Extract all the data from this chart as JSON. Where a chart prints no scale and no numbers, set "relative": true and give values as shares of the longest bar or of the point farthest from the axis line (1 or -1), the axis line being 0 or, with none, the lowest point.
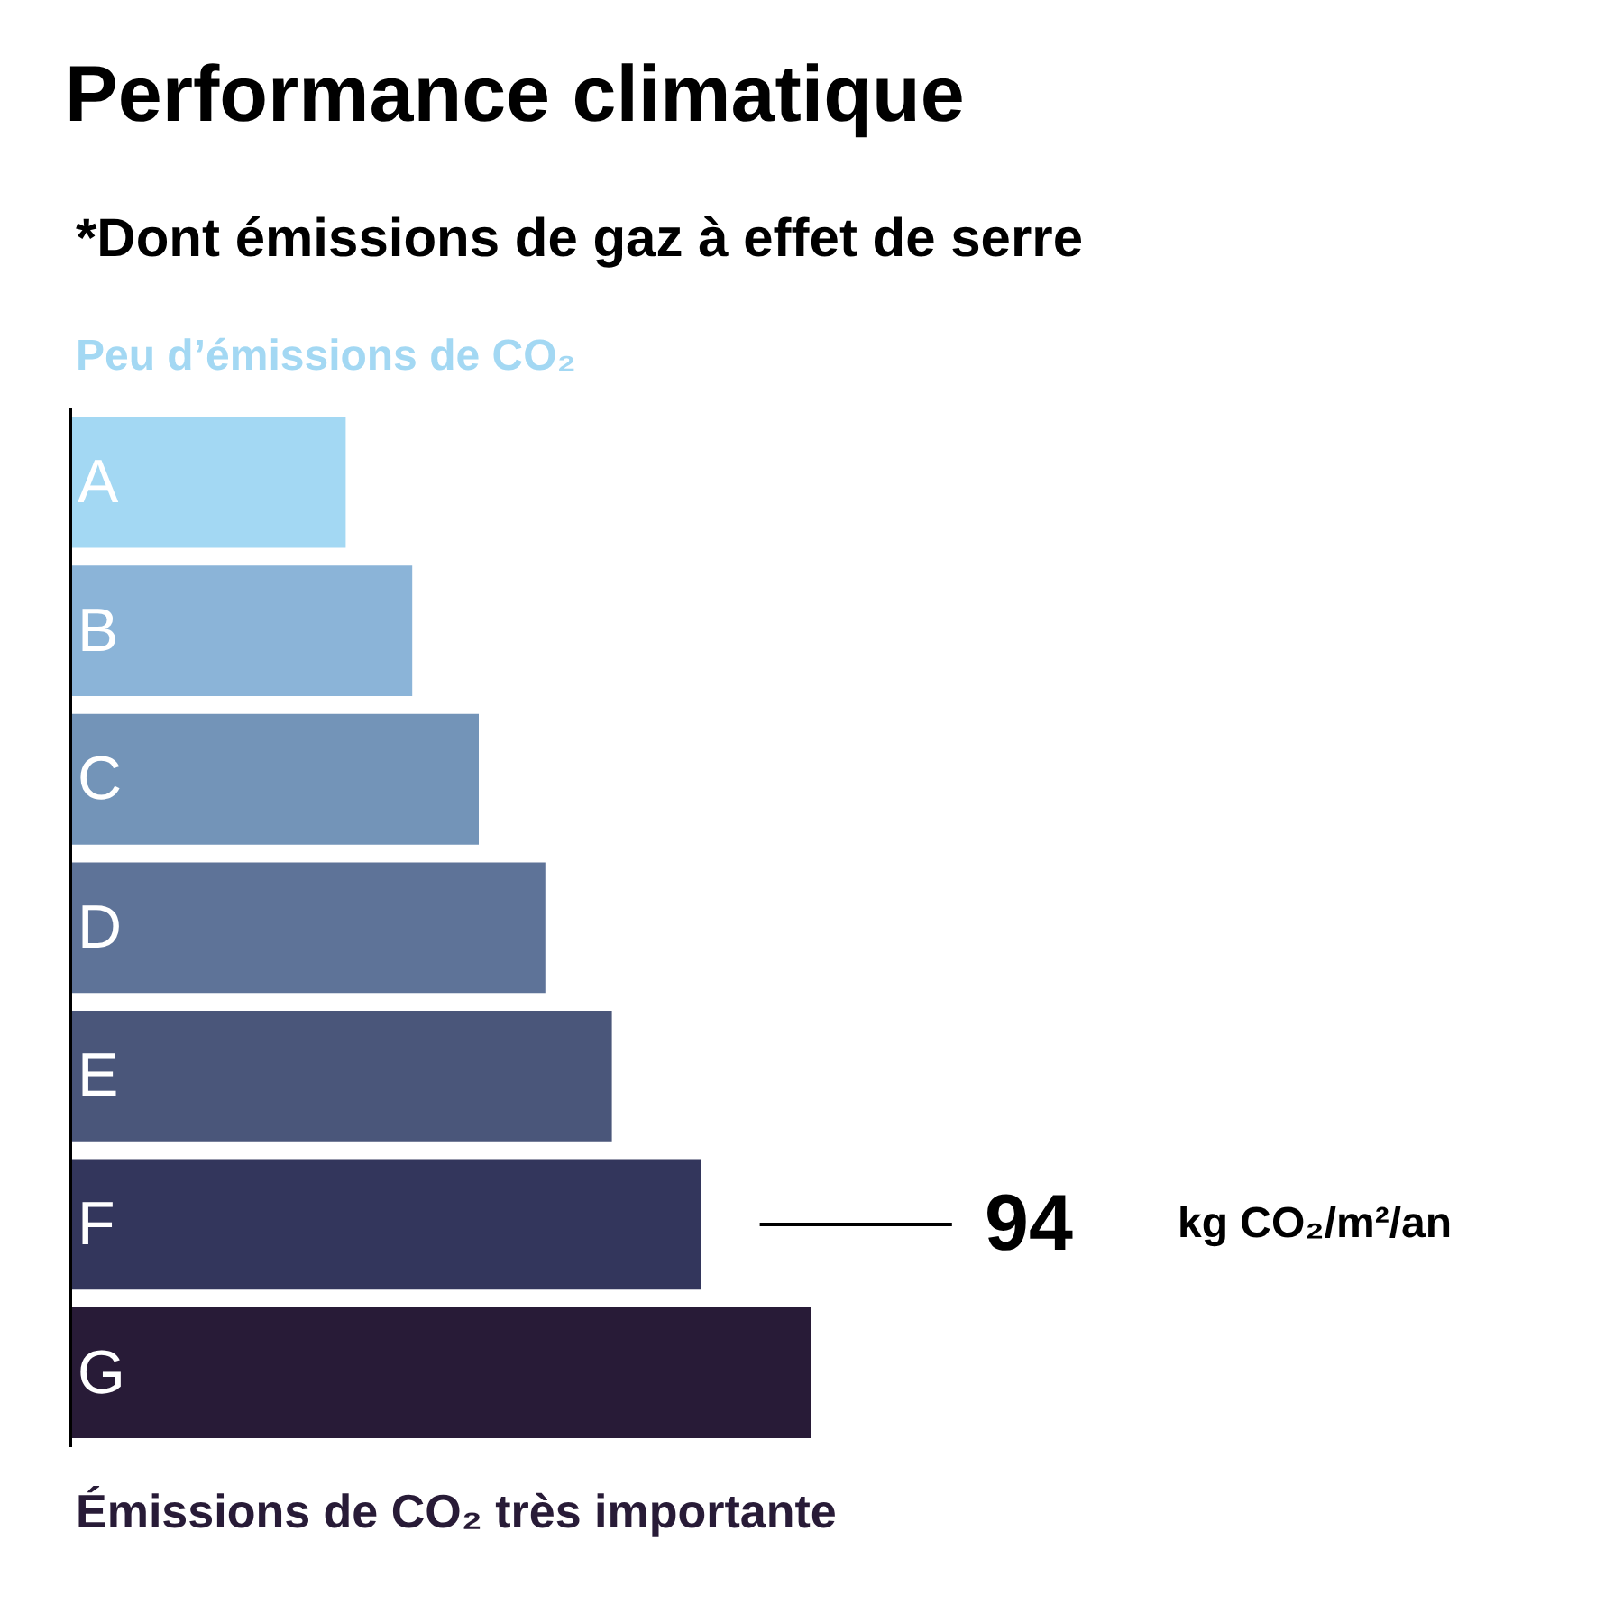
{
  "chart_data": {
    "type": "bar",
    "orientation": "horizontal",
    "relative": true,
    "title": "Performance climatique",
    "subtitle": "*Dont émissions de gaz à effet de serre",
    "categories": [
      "A",
      "B",
      "C",
      "D",
      "E",
      "F",
      "G"
    ],
    "values": [
      0.37,
      0.46,
      0.55,
      0.64,
      0.73,
      0.85,
      1.0
    ],
    "colors": [
      "#a3d8f3",
      "#8bb4d8",
      "#7394b8",
      "#5e7398",
      "#4a567a",
      "#33365c",
      "#281b37"
    ],
    "annotations": [
      "Peu d’émissions de CO₂",
      "94",
      "kg CO₂/m²/an",
      "Émissions de CO₂ très importante"
    ]
  }
}
